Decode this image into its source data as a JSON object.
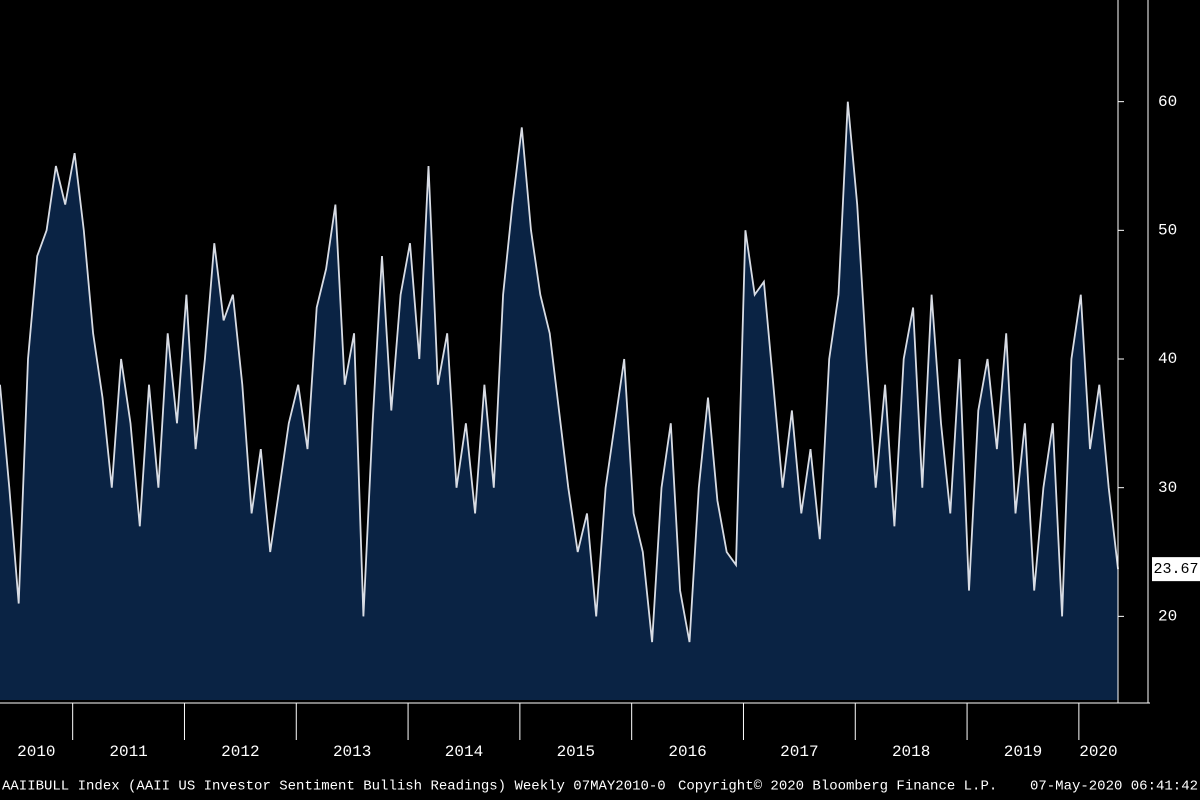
{
  "chart_data": {
    "type": "area",
    "x": [
      2010.35,
      2010.433,
      2010.517,
      2010.6,
      2010.683,
      2010.767,
      2010.85,
      2010.933,
      2011.017,
      2011.1,
      2011.183,
      2011.267,
      2011.35,
      2011.433,
      2011.517,
      2011.6,
      2011.683,
      2011.767,
      2011.85,
      2011.933,
      2012.017,
      2012.1,
      2012.183,
      2012.267,
      2012.35,
      2012.433,
      2012.517,
      2012.6,
      2012.683,
      2012.767,
      2012.85,
      2012.933,
      2013.017,
      2013.1,
      2013.183,
      2013.267,
      2013.35,
      2013.433,
      2013.517,
      2013.6,
      2013.683,
      2013.767,
      2013.85,
      2013.933,
      2014.017,
      2014.1,
      2014.183,
      2014.267,
      2014.35,
      2014.433,
      2014.517,
      2014.6,
      2014.683,
      2014.767,
      2014.85,
      2014.933,
      2015.017,
      2015.1,
      2015.183,
      2015.267,
      2015.35,
      2015.433,
      2015.517,
      2015.6,
      2015.683,
      2015.767,
      2015.85,
      2015.933,
      2016.017,
      2016.1,
      2016.183,
      2016.267,
      2016.35,
      2016.433,
      2016.517,
      2016.6,
      2016.683,
      2016.767,
      2016.85,
      2016.933,
      2017.017,
      2017.1,
      2017.183,
      2017.267,
      2017.35,
      2017.433,
      2017.517,
      2017.6,
      2017.683,
      2017.767,
      2017.85,
      2017.933,
      2018.017,
      2018.1,
      2018.183,
      2018.267,
      2018.35,
      2018.433,
      2018.517,
      2018.6,
      2018.683,
      2018.767,
      2018.85,
      2018.933,
      2019.017,
      2019.1,
      2019.183,
      2019.267,
      2019.35,
      2019.433,
      2019.517,
      2019.6,
      2019.683,
      2019.767,
      2019.85,
      2019.933,
      2020.017,
      2020.1,
      2020.183,
      2020.267,
      2020.35
    ],
    "series": [
      {
        "name": "AAIIBULL Index",
        "color": "#d8dce4",
        "fill": "#0a2344",
        "values": [
          38,
          30,
          21,
          40,
          48,
          50,
          55,
          52,
          56,
          50,
          42,
          37,
          30,
          40,
          35,
          27,
          38,
          30,
          42,
          35,
          45,
          33,
          40,
          49,
          43,
          45,
          38,
          28,
          33,
          25,
          30,
          35,
          38,
          33,
          44,
          47,
          52,
          38,
          42,
          20,
          35,
          48,
          36,
          45,
          49,
          40,
          55,
          38,
          42,
          30,
          35,
          28,
          38,
          30,
          45,
          52,
          58,
          50,
          45,
          42,
          36,
          30,
          25,
          28,
          20,
          30,
          35,
          40,
          28,
          25,
          18,
          30,
          35,
          22,
          18,
          30,
          37,
          29,
          25,
          24,
          50,
          45,
          46,
          38,
          30,
          36,
          28,
          33,
          26,
          40,
          45,
          60,
          52,
          40,
          30,
          38,
          27,
          40,
          44,
          30,
          45,
          35,
          28,
          40,
          22,
          36,
          40,
          33,
          42,
          28,
          35,
          22,
          30,
          35,
          20,
          40,
          45,
          33,
          38,
          30,
          23.67
        ]
      }
    ],
    "xlim": [
      2010.35,
      2020.35
    ],
    "xticks": [
      2011,
      2012,
      2013,
      2014,
      2015,
      2016,
      2017,
      2018,
      2019,
      2020
    ],
    "year_labels": [
      "2010",
      "2011",
      "2012",
      "2013",
      "2014",
      "2015",
      "2016",
      "2017",
      "2018",
      "2019",
      "2020"
    ],
    "ylim": [
      13.5,
      67.9
    ],
    "yticks": [
      20,
      30,
      40,
      50,
      60
    ],
    "footer": {
      "left": "AAIIBULL Index (AAII US Investor Sentiment Bullish Readings)  Weekly 07MAY2010-0",
      "center": "Copyright© 2020 Bloomberg Finance L.P.",
      "right": "07-May-2020 06:41:42"
    }
  }
}
